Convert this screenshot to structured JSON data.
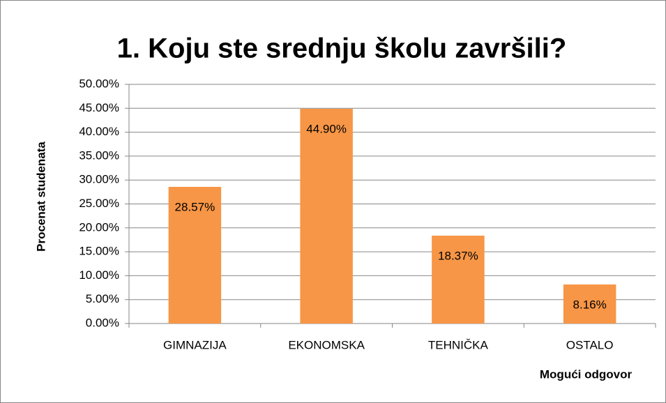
{
  "chart_data": {
    "type": "bar",
    "title": "1. Koju ste srednju školu završili?",
    "y_label": "Procenat studenata",
    "x_label": "Mogući odgovor",
    "categories": [
      "GIMNAZIJA",
      "EKONOMSKA",
      "TEHNIČKA",
      "OSTALO"
    ],
    "values": [
      28.57,
      44.9,
      18.37,
      8.16
    ],
    "value_labels": [
      "28.57%",
      "44.90%",
      "18.37%",
      "8.16%"
    ],
    "color": "#f79646",
    "ylim": [
      0,
      50
    ],
    "yticks": [
      {
        "value": 0,
        "label": "0.00%"
      },
      {
        "value": 5,
        "label": "5.00%"
      },
      {
        "value": 10,
        "label": "10.00%"
      },
      {
        "value": 15,
        "label": "15.00%"
      },
      {
        "value": 20,
        "label": "20.00%"
      },
      {
        "value": 25,
        "label": "25.00%"
      },
      {
        "value": 30,
        "label": "30.00%"
      },
      {
        "value": 35,
        "label": "35.00%"
      },
      {
        "value": 40,
        "label": "40.00%"
      },
      {
        "value": 45,
        "label": "45.00%"
      },
      {
        "value": 50,
        "label": "50.00%"
      }
    ],
    "grid": true
  }
}
